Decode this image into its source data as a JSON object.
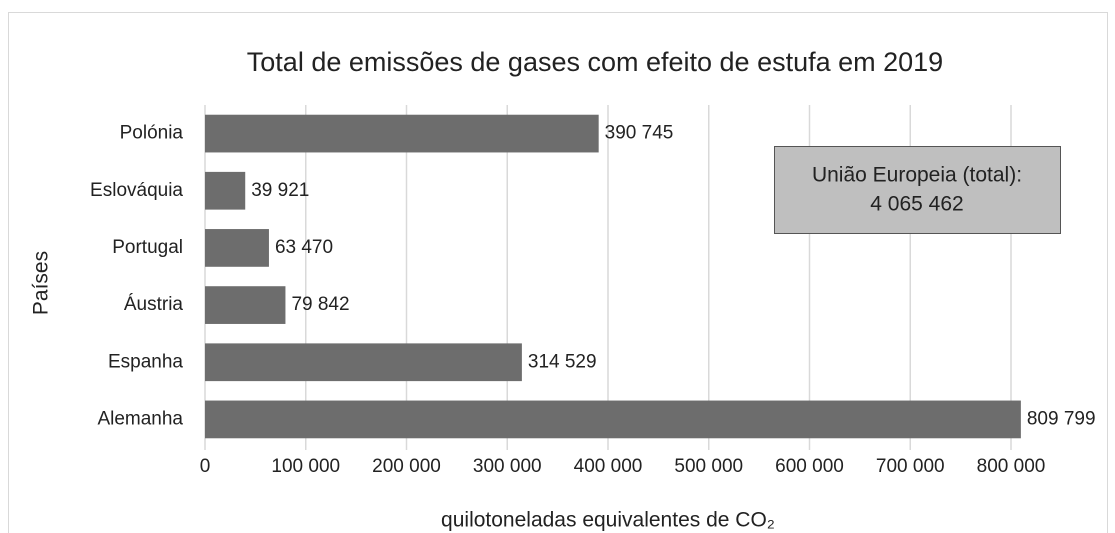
{
  "chart_data": {
    "type": "bar",
    "orientation": "horizontal",
    "title": "Total de emissões de gases com efeito de estufa em 2019",
    "x_label": "quilotoneladas equivalentes de CO₂",
    "y_label": "Países",
    "categories": [
      "Polónia",
      "Eslováquia",
      "Portugal",
      "Áustria",
      "Espanha",
      "Alemanha"
    ],
    "values": [
      390745,
      39921,
      63470,
      79842,
      314529,
      809799
    ],
    "value_labels": [
      "390 745",
      "39 921",
      "63 470",
      "79 842",
      "314 529",
      "809 799"
    ],
    "color": "#6d6d6d",
    "xlim": [
      0,
      800000
    ],
    "xticks": [
      0,
      {
        "value": 100000,
        "label": "100 000"
      },
      {
        "value": 200000,
        "label": "200 000"
      },
      {
        "value": 300000,
        "label": "300 000"
      },
      {
        "value": 400000,
        "label": "400 000"
      },
      {
        "value": 500000,
        "label": "500 000"
      },
      {
        "value": 600000,
        "label": "600 000"
      },
      {
        "value": 700000,
        "label": "700 000"
      },
      {
        "value": 800000,
        "label": "800 000"
      }
    ],
    "grid": true,
    "annotation": [
      "União Europeia (total):",
      "4 065 462"
    ]
  }
}
